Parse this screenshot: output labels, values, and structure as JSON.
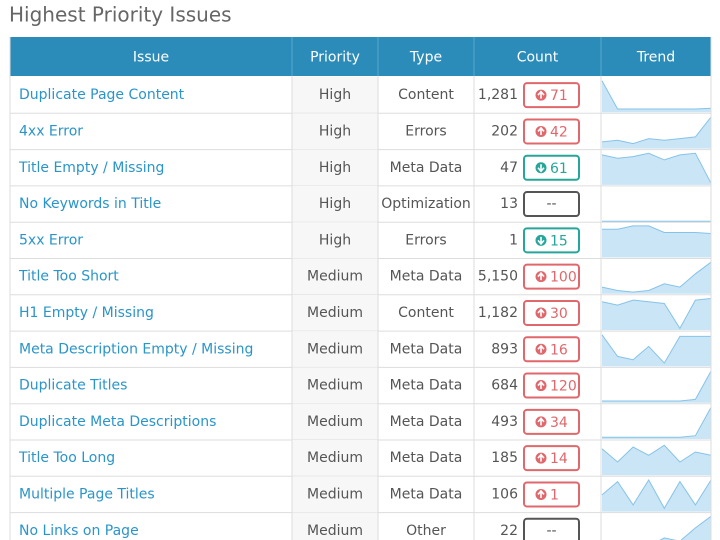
{
  "title": "Highest Priority Issues",
  "trend_ylim": [
    0,
    100
  ],
  "table": {
    "headers": [
      "Issue",
      "Priority",
      "Type",
      "Count",
      "Trend"
    ],
    "rows": [
      {
        "issue": "Duplicate Page Content",
        "priority": "High",
        "type": "Content",
        "count": "1,281",
        "change": "71",
        "direction": "up",
        "trend": [
          95,
          10,
          10,
          10,
          10,
          10,
          10,
          12
        ]
      },
      {
        "issue": "4xx Error",
        "priority": "High",
        "type": "Errors",
        "count": "202",
        "change": "42",
        "direction": "up",
        "trend": [
          20,
          25,
          15,
          30,
          25,
          30,
          35,
          95
        ]
      },
      {
        "issue": "Title Empty / Missing",
        "priority": "High",
        "type": "Meta Data",
        "count": "47",
        "change": "61",
        "direction": "down",
        "trend": [
          90,
          80,
          85,
          95,
          75,
          90,
          95,
          5
        ]
      },
      {
        "issue": "No Keywords in Title",
        "priority": "High",
        "type": "Optimization",
        "count": "13",
        "change": "--",
        "direction": "none",
        "trend": [
          0,
          0,
          0,
          0,
          0,
          0,
          0,
          0
        ]
      },
      {
        "issue": "5xx Error",
        "priority": "High",
        "type": "Errors",
        "count": "1",
        "change": "15",
        "direction": "down",
        "trend": [
          85,
          85,
          95,
          95,
          75,
          75,
          75,
          72
        ]
      },
      {
        "issue": "Title Too Short",
        "priority": "Medium",
        "type": "Meta Data",
        "count": "5,150",
        "change": "100",
        "direction": "up",
        "trend": [
          20,
          10,
          5,
          10,
          30,
          20,
          60,
          95
        ]
      },
      {
        "issue": "H1 Empty / Missing",
        "priority": "Medium",
        "type": "Content",
        "count": "1,182",
        "change": "30",
        "direction": "up",
        "trend": [
          85,
          75,
          90,
          85,
          80,
          5,
          90,
          95
        ]
      },
      {
        "issue": "Meta Description Empty / Missing",
        "priority": "Medium",
        "type": "Meta Data",
        "count": "893",
        "change": "16",
        "direction": "up",
        "trend": [
          95,
          30,
          20,
          60,
          10,
          90,
          90,
          90
        ]
      },
      {
        "issue": "Duplicate Titles",
        "priority": "Medium",
        "type": "Meta Data",
        "count": "684",
        "change": "120",
        "direction": "up",
        "trend": [
          5,
          5,
          5,
          5,
          5,
          5,
          10,
          95
        ]
      },
      {
        "issue": "Duplicate Meta Descriptions",
        "priority": "Medium",
        "type": "Meta Data",
        "count": "493",
        "change": "34",
        "direction": "up",
        "trend": [
          5,
          5,
          5,
          5,
          5,
          5,
          10,
          95
        ]
      },
      {
        "issue": "Title Too Long",
        "priority": "Medium",
        "type": "Meta Data",
        "count": "185",
        "change": "14",
        "direction": "up",
        "trend": [
          80,
          40,
          85,
          60,
          90,
          40,
          70,
          60
        ]
      },
      {
        "issue": "Multiple Page Titles",
        "priority": "Medium",
        "type": "Meta Data",
        "count": "106",
        "change": "1",
        "direction": "up",
        "trend": [
          50,
          90,
          20,
          95,
          10,
          90,
          20,
          95
        ]
      },
      {
        "issue": "No Links on Page",
        "priority": "Medium",
        "type": "Other",
        "count": "22",
        "change": "--",
        "direction": "none",
        "trend": [
          10,
          5,
          20,
          5,
          30,
          20,
          60,
          95
        ]
      }
    ]
  }
}
